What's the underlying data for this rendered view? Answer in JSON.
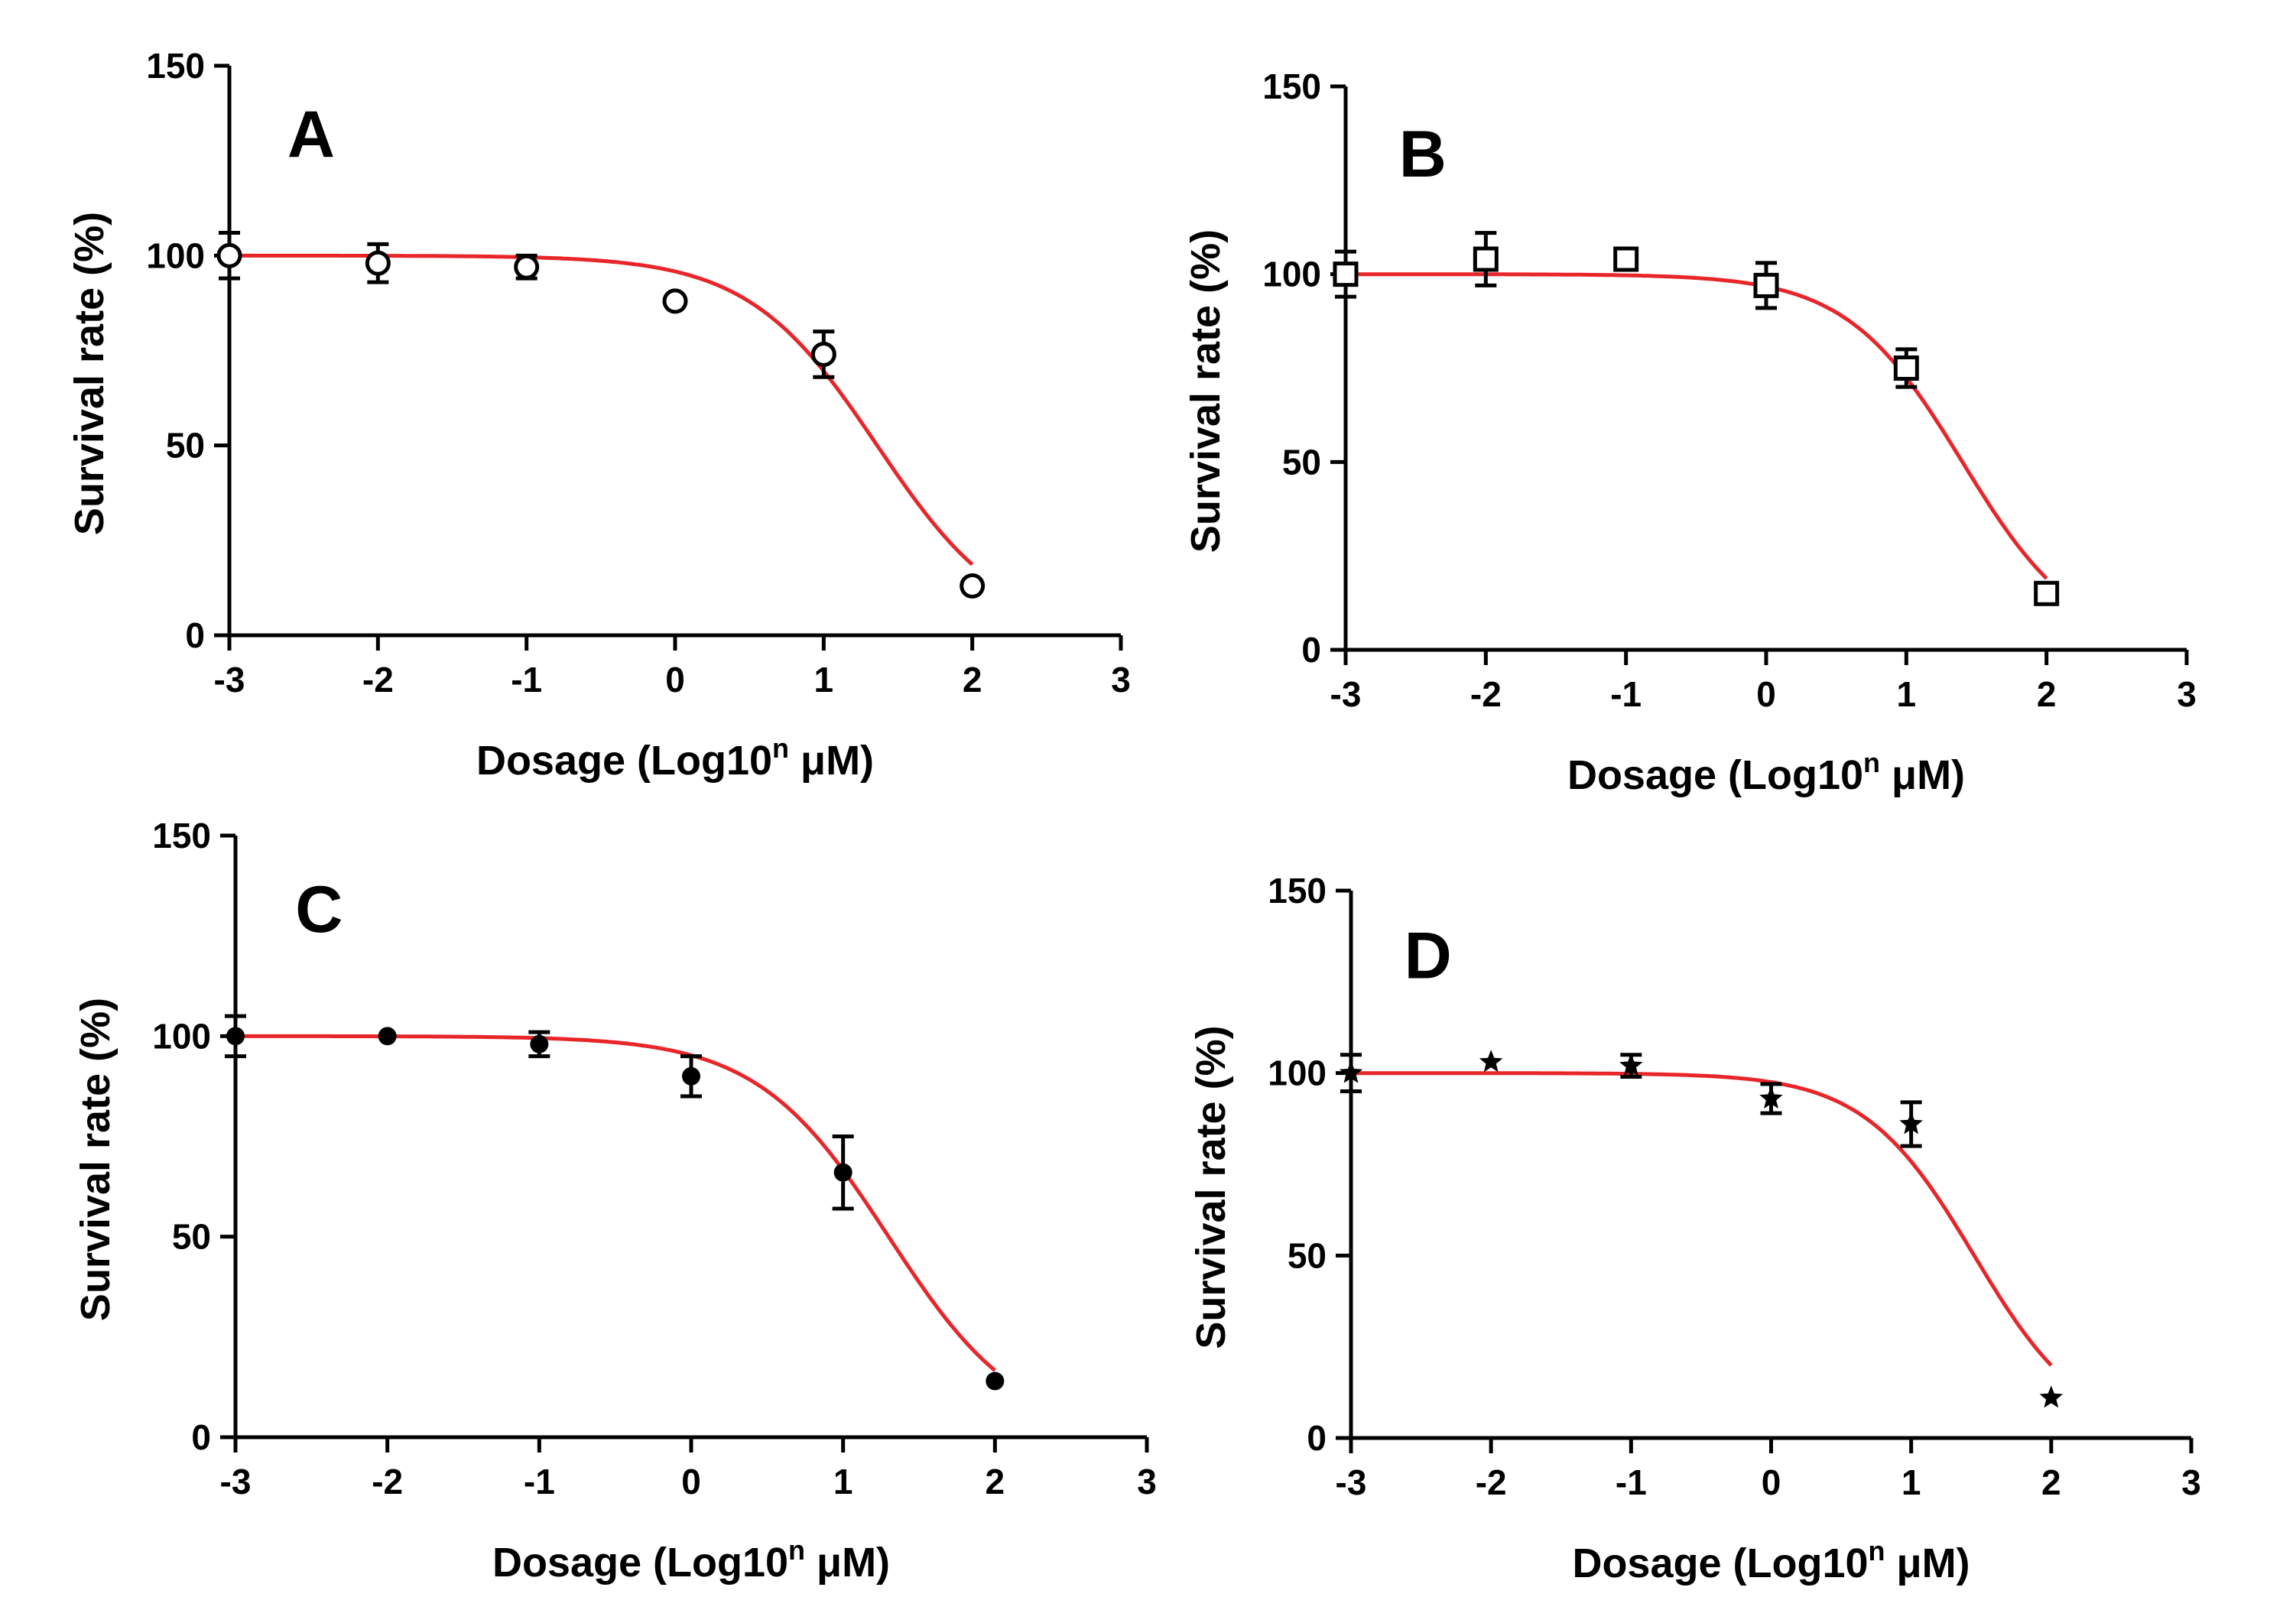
{
  "chart_data": [
    {
      "type": "scatter",
      "panel": "A",
      "marker": "circle",
      "title": "",
      "xlabel_prefix": "Dosage (Log10",
      "xlabel_sup": "n",
      "xlabel_suffix": " μM)",
      "ylabel": "Survival rate (%)",
      "xlim": [
        -3,
        3
      ],
      "ylim": [
        0,
        150
      ],
      "xticks": [
        "-3",
        "-2",
        "-1",
        "0",
        "1",
        "2",
        "3"
      ],
      "yticks": [
        "0",
        "50",
        "100",
        "150"
      ],
      "x": [
        -3,
        -2,
        -1,
        0,
        1,
        2
      ],
      "y": [
        100,
        98,
        97,
        88,
        74,
        13
      ],
      "err": [
        6,
        5,
        3,
        1,
        6,
        1
      ],
      "fit": {
        "color": "#e8262a",
        "top": 100,
        "bottom": 0,
        "log_ic50": 1.36,
        "hill": 1.0
      }
    },
    {
      "type": "scatter",
      "panel": "B",
      "marker": "square",
      "title": "",
      "xlabel_prefix": "Dosage (Log10",
      "xlabel_sup": "n",
      "xlabel_suffix": " μM)",
      "ylabel": "Survival rate (%)",
      "xlim": [
        -3,
        3
      ],
      "ylim": [
        0,
        150
      ],
      "xticks": [
        "-3",
        "-2",
        "-1",
        "0",
        "1",
        "2",
        "3"
      ],
      "yticks": [
        "0",
        "50",
        "100",
        "150"
      ],
      "x": [
        -3,
        -2,
        -1,
        0,
        1,
        2
      ],
      "y": [
        100,
        104,
        104,
        97,
        75,
        15
      ],
      "err": [
        6,
        7,
        2,
        6,
        5,
        1
      ],
      "fit": {
        "color": "#e8262a",
        "top": 100,
        "bottom": 0,
        "log_ic50": 1.4,
        "hill": 1.05
      }
    },
    {
      "type": "scatter",
      "panel": "C",
      "marker": "filled-circle",
      "title": "",
      "xlabel_prefix": "Dosage (Log10",
      "xlabel_sup": "n",
      "xlabel_suffix": " μM)",
      "ylabel": "Survival rate (%)",
      "xlim": [
        -3,
        3
      ],
      "ylim": [
        0,
        150
      ],
      "xticks": [
        "-3",
        "-2",
        "-1",
        "0",
        "1",
        "2",
        "3"
      ],
      "yticks": [
        "0",
        "50",
        "100",
        "150"
      ],
      "x": [
        -3,
        -2,
        -1,
        0,
        1,
        2
      ],
      "y": [
        100,
        100,
        98,
        90,
        66,
        14
      ],
      "err": [
        5,
        1,
        3,
        5,
        9,
        1
      ],
      "fit": {
        "color": "#e8262a",
        "top": 100,
        "bottom": 0,
        "log_ic50": 1.3,
        "hill": 1.0
      }
    },
    {
      "type": "scatter",
      "panel": "D",
      "marker": "star",
      "title": "",
      "xlabel_prefix": "Dosage (Log10",
      "xlabel_sup": "n",
      "xlabel_suffix": " μM)",
      "ylabel": "Survival rate (%)",
      "xlim": [
        -3,
        3
      ],
      "ylim": [
        0,
        150
      ],
      "xticks": [
        "-3",
        "-2",
        "-1",
        "0",
        "1",
        "2",
        "3"
      ],
      "yticks": [
        "0",
        "50",
        "100",
        "150"
      ],
      "x": [
        -3,
        -2,
        -1,
        0,
        1,
        2
      ],
      "y": [
        100,
        103,
        102,
        93,
        86,
        11
      ],
      "err": [
        5,
        1,
        3,
        4,
        6,
        1
      ],
      "fit": {
        "color": "#e8262a",
        "top": 100,
        "bottom": 0,
        "log_ic50": 1.45,
        "hill": 1.1
      }
    }
  ]
}
